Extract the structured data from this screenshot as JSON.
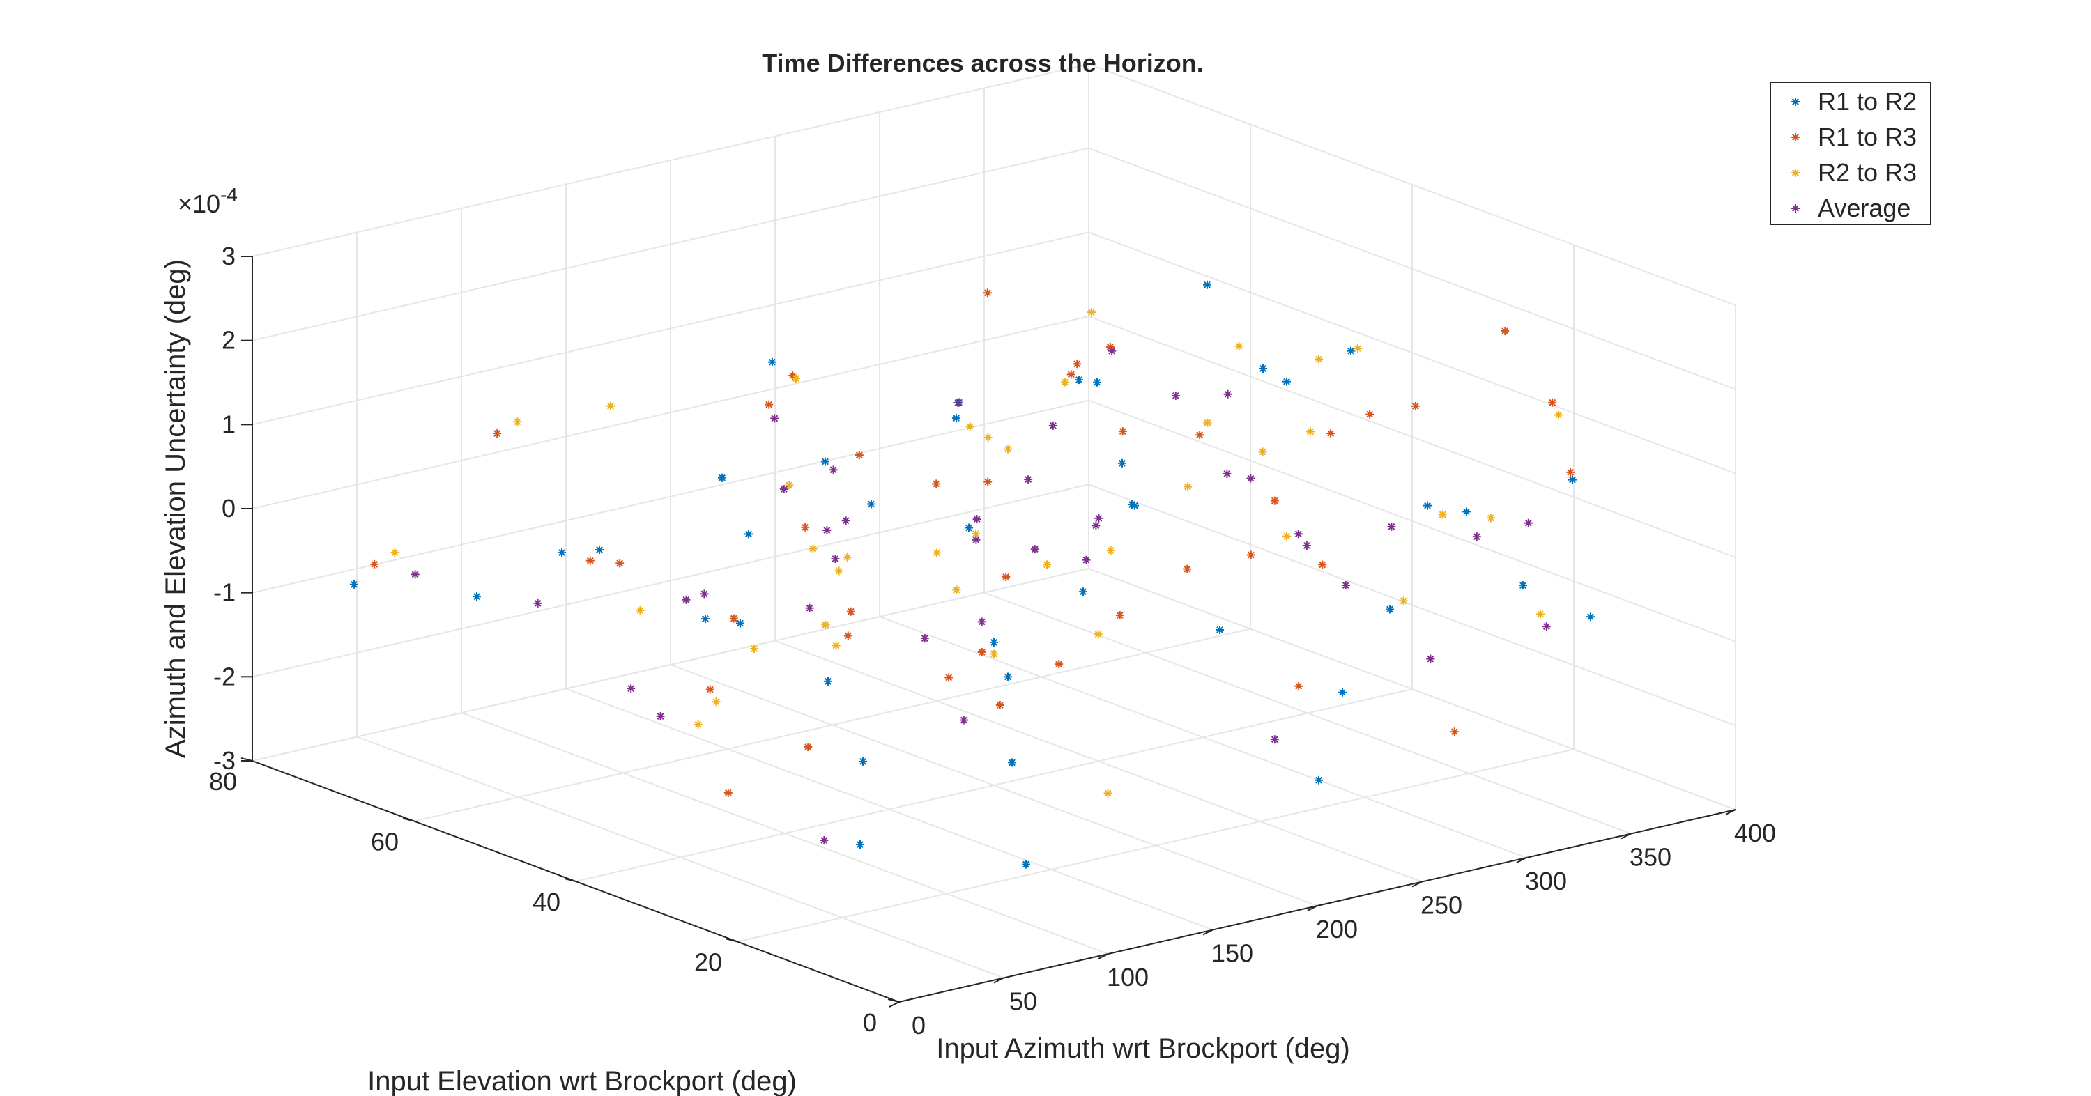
{
  "chart_data": {
    "type": "scatter",
    "title": "Time Differences across the Horizon.",
    "xlabel": "Input Azimuth wrt Brockport (deg)",
    "ylabel": "Input Elevation wrt Brockport (deg)",
    "zlabel": "Azimuth and Elevation Uncertainty (deg)",
    "z_exponent_label": "×10",
    "z_exponent_power": "-4",
    "xlim": [
      0,
      400
    ],
    "ylim": [
      0,
      80
    ],
    "zlim": [
      -3,
      3
    ],
    "x_ticks": [
      "0",
      "50",
      "100",
      "150",
      "200",
      "250",
      "300",
      "350",
      "400"
    ],
    "y_ticks": [
      "0",
      "20",
      "40",
      "60",
      "80"
    ],
    "z_ticks": [
      "-3",
      "-2",
      "-1",
      "0",
      "1",
      "2",
      "3"
    ],
    "grid": true,
    "legend_position": "top-right",
    "series": [
      {
        "name": "R1 to R2",
        "color": "#0072BD",
        "marker": "*",
        "points": [
          [
            10,
            70,
            -0.6
          ],
          [
            20,
            10,
            -1.6
          ],
          [
            30,
            60,
            -0.5
          ],
          [
            40,
            30,
            0.2
          ],
          [
            50,
            50,
            0.3
          ],
          [
            60,
            20,
            -1.2
          ],
          [
            70,
            40,
            1.4
          ],
          [
            80,
            5,
            -2.0
          ],
          [
            90,
            65,
            -0.5
          ],
          [
            100,
            35,
            1.6
          ],
          [
            110,
            15,
            -0.3
          ],
          [
            120,
            55,
            -1.1
          ],
          [
            130,
            25,
            1.0
          ],
          [
            140,
            45,
            -1.6
          ],
          [
            150,
            10,
            1.7
          ],
          [
            160,
            60,
            -0.5
          ],
          [
            170,
            30,
            -2.2
          ],
          [
            180,
            50,
            0.1
          ],
          [
            190,
            20,
            1.1
          ],
          [
            200,
            40,
            -1.3
          ],
          [
            210,
            70,
            0.9
          ],
          [
            220,
            5,
            -1.8
          ],
          [
            230,
            35,
            1.8
          ],
          [
            240,
            55,
            0.6
          ],
          [
            250,
            25,
            -0.9
          ],
          [
            260,
            45,
            1.3
          ],
          [
            270,
            15,
            -1.4
          ],
          [
            280,
            65,
            0.2
          ],
          [
            290,
            30,
            1.8
          ],
          [
            300,
            50,
            -0.1
          ],
          [
            310,
            10,
            0.7
          ],
          [
            320,
            60,
            -2.1
          ],
          [
            330,
            20,
            0.3
          ],
          [
            340,
            40,
            1.0
          ],
          [
            350,
            5,
            -0.6
          ],
          [
            360,
            55,
            1.5
          ],
          [
            370,
            35,
            -1.7
          ],
          [
            380,
            15,
            0.5
          ],
          [
            390,
            45,
            0.9
          ],
          [
            395,
            25,
            -1.2
          ]
        ]
      },
      {
        "name": "R1 to R3",
        "color": "#D95319",
        "marker": "*",
        "points": [
          [
            12,
            68,
            -0.3
          ],
          [
            22,
            12,
            0.8
          ],
          [
            32,
            58,
            1.5
          ],
          [
            42,
            32,
            -1.9
          ],
          [
            52,
            48,
            0.2
          ],
          [
            62,
            22,
            0.5
          ],
          [
            72,
            42,
            -1.2
          ],
          [
            82,
            8,
            1.3
          ],
          [
            92,
            62,
            -0.5
          ],
          [
            102,
            38,
            0.7
          ],
          [
            112,
            18,
            1.9
          ],
          [
            122,
            52,
            -1.0
          ],
          [
            132,
            28,
            -0.9
          ],
          [
            142,
            48,
            -2.5
          ],
          [
            152,
            12,
            0.3
          ],
          [
            162,
            58,
            1.1
          ],
          [
            172,
            32,
            -1.6
          ],
          [
            182,
            52,
            0.6
          ],
          [
            192,
            22,
            1.9
          ],
          [
            202,
            42,
            -1.5
          ],
          [
            212,
            68,
            0.8
          ],
          [
            222,
            8,
            -0.8
          ],
          [
            232,
            38,
            1.9
          ],
          [
            242,
            58,
            -0.3
          ],
          [
            252,
            28,
            1.3
          ],
          [
            262,
            48,
            -2.2
          ],
          [
            272,
            18,
            0.0
          ],
          [
            282,
            62,
            1.6
          ],
          [
            292,
            32,
            -0.5
          ],
          [
            302,
            52,
            1.2
          ],
          [
            312,
            12,
            -2.0
          ],
          [
            322,
            62,
            0.4
          ],
          [
            332,
            22,
            1.4
          ],
          [
            342,
            42,
            -0.5
          ],
          [
            352,
            8,
            1.0
          ],
          [
            362,
            58,
            -2.0
          ],
          [
            372,
            38,
            0.5
          ],
          [
            382,
            18,
            1.3
          ],
          [
            392,
            48,
            -0.2
          ],
          [
            398,
            28,
            1.7
          ]
        ]
      },
      {
        "name": "R2 to R3",
        "color": "#EDB120",
        "marker": "*",
        "points": [
          [
            14,
            66,
            -0.1
          ],
          [
            24,
            14,
            0.6
          ],
          [
            34,
            56,
            1.7
          ],
          [
            44,
            34,
            -0.9
          ],
          [
            54,
            46,
            -0.3
          ],
          [
            64,
            24,
            0.9
          ],
          [
            74,
            44,
            -1.7
          ],
          [
            84,
            10,
            0.3
          ],
          [
            94,
            60,
            1.4
          ],
          [
            104,
            36,
            -0.4
          ],
          [
            114,
            20,
            1.2
          ],
          [
            124,
            50,
            -1.3
          ],
          [
            134,
            30,
            0.5
          ],
          [
            144,
            50,
            1.8
          ],
          [
            154,
            14,
            -1.9
          ],
          [
            164,
            56,
            0.2
          ],
          [
            174,
            34,
            1.5
          ],
          [
            184,
            54,
            -0.7
          ],
          [
            194,
            24,
            0.4
          ],
          [
            204,
            44,
            1.1
          ],
          [
            214,
            66,
            -1.2
          ],
          [
            224,
            10,
            0.9
          ],
          [
            234,
            40,
            1.6
          ],
          [
            244,
            56,
            -1.5
          ],
          [
            254,
            30,
            0.6
          ],
          [
            264,
            50,
            -1.1
          ],
          [
            274,
            20,
            1.5
          ],
          [
            284,
            60,
            -0.2
          ],
          [
            294,
            34,
            1.9
          ],
          [
            304,
            54,
            -2.3
          ],
          [
            314,
            14,
            0.5
          ],
          [
            324,
            60,
            1.2
          ],
          [
            334,
            24,
            -1.0
          ],
          [
            344,
            44,
            0.0
          ],
          [
            354,
            10,
            1.6
          ],
          [
            364,
            56,
            -0.2
          ],
          [
            374,
            40,
            1.2
          ],
          [
            384,
            20,
            -1.3
          ],
          [
            394,
            50,
            0.6
          ],
          [
            399,
            30,
            -0.6
          ]
        ]
      },
      {
        "name": "Average",
        "color": "#7E2F8E",
        "marker": "*",
        "points": [
          [
            16,
            64,
            -0.3
          ],
          [
            26,
            16,
            -1.8
          ],
          [
            36,
            54,
            -0.4
          ],
          [
            46,
            36,
            0.3
          ],
          [
            56,
            44,
            -1.5
          ],
          [
            66,
            26,
            1.3
          ],
          [
            76,
            46,
            -0.3
          ],
          [
            86,
            12,
            0.6
          ],
          [
            96,
            58,
            -1.9
          ],
          [
            106,
            34,
            0.9
          ],
          [
            116,
            22,
            -1.1
          ],
          [
            126,
            48,
            1.5
          ],
          [
            136,
            32,
            -0.6
          ],
          [
            146,
            52,
            0.4
          ],
          [
            156,
            16,
            1.2
          ],
          [
            166,
            54,
            -1.2
          ],
          [
            176,
            36,
            0.2
          ],
          [
            186,
            56,
            -0.8
          ],
          [
            196,
            26,
            0.7
          ],
          [
            206,
            46,
            1.3
          ],
          [
            216,
            64,
            -0.2
          ],
          [
            226,
            12,
            -1.6
          ],
          [
            236,
            42,
            1.0
          ],
          [
            246,
            54,
            -0.6
          ],
          [
            256,
            32,
            1.6
          ],
          [
            266,
            52,
            -1.0
          ],
          [
            276,
            22,
            0.2
          ],
          [
            286,
            58,
            -0.5
          ],
          [
            296,
            36,
            0.3
          ],
          [
            306,
            56,
            -1.5
          ],
          [
            316,
            16,
            -1.3
          ],
          [
            326,
            58,
            0.8
          ],
          [
            336,
            26,
            -0.2
          ],
          [
            346,
            46,
            -0.4
          ],
          [
            356,
            12,
            -1.0
          ],
          [
            366,
            54,
            0.2
          ],
          [
            376,
            42,
            -1.7
          ],
          [
            386,
            22,
            -0.3
          ],
          [
            396,
            52,
            -1.7
          ],
          [
            400,
            32,
            -0.9
          ]
        ]
      }
    ]
  }
}
